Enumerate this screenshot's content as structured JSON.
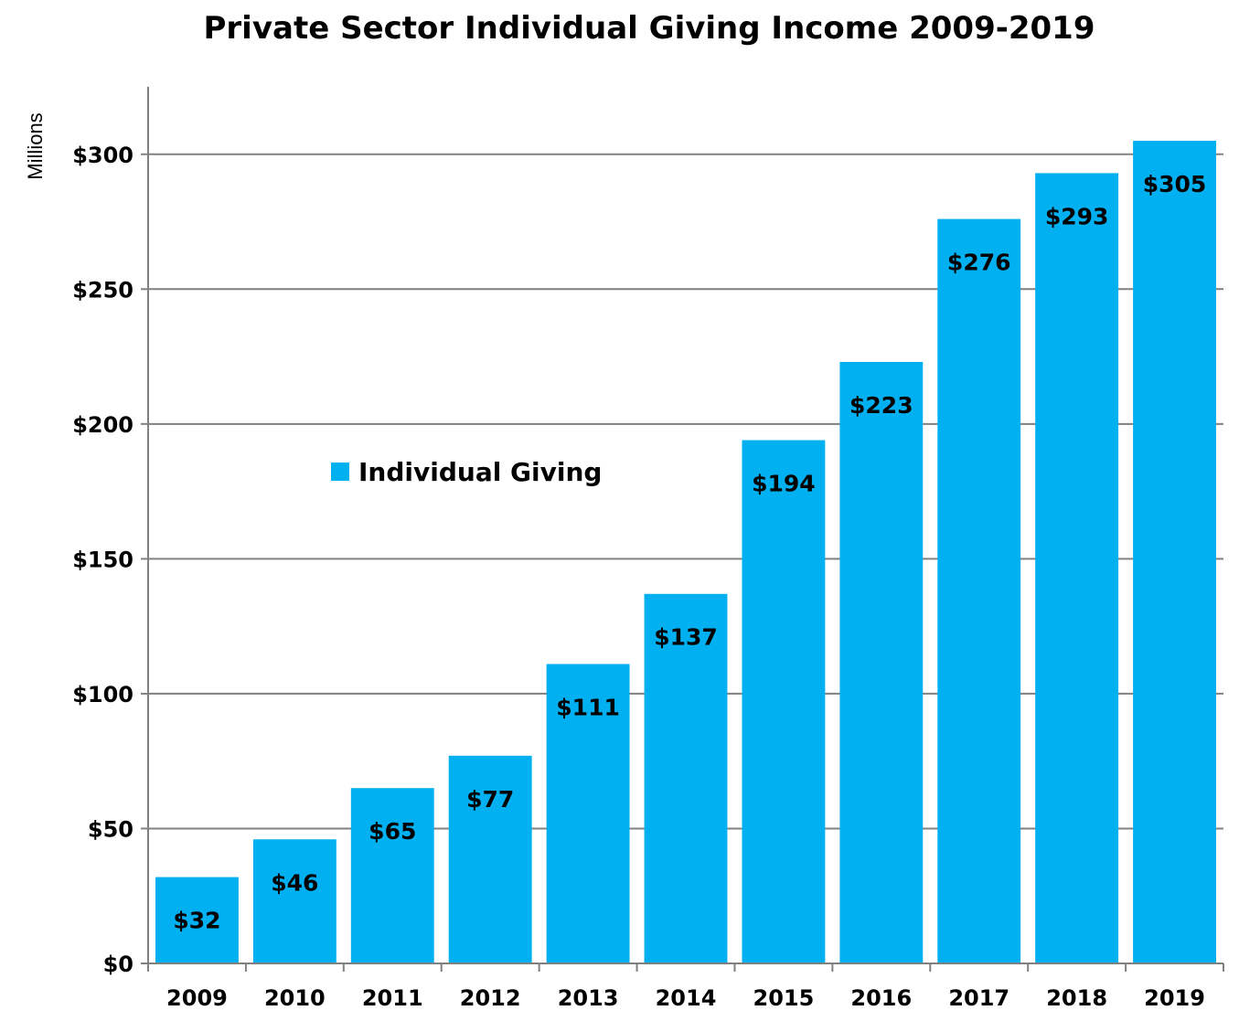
{
  "chart_data": {
    "type": "bar",
    "title": "Private Sector Individual Giving Income 2009-2019",
    "ylabel": "Millions",
    "xlabel": "",
    "categories": [
      "2009",
      "2010",
      "2011",
      "2012",
      "2013",
      "2014",
      "2015",
      "2016",
      "2017",
      "2018",
      "2019"
    ],
    "series": [
      {
        "name": "Individual Giving",
        "values": [
          32,
          46,
          65,
          77,
          111,
          137,
          194,
          223,
          276,
          293,
          305
        ],
        "data_labels": [
          "$32",
          "$46",
          "$65",
          "$77",
          "$111",
          "$137",
          "$194",
          "$223",
          "$276",
          "$293",
          "$305"
        ]
      }
    ],
    "yticks": [
      0,
      50,
      100,
      150,
      200,
      250,
      300
    ],
    "ytick_labels": [
      "$0",
      "$50",
      "$100",
      "$150",
      "$200",
      "$250",
      "$300"
    ],
    "ylim": [
      0,
      325
    ],
    "grid": true,
    "legend_position": "center-left",
    "bar_color": "#00b0f0"
  }
}
